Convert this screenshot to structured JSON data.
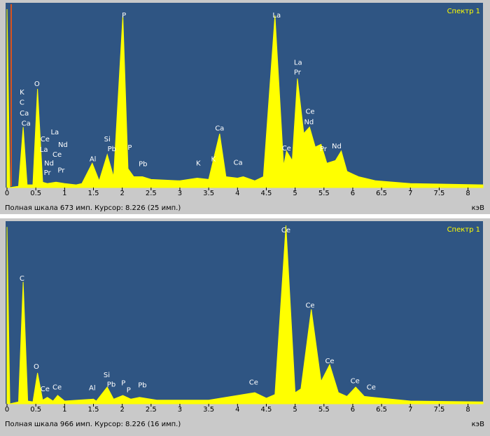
{
  "chart_data": [
    {
      "type": "area",
      "title": "Спектр 1",
      "status": "Полная шкала 673 имп. Курсор: 8.226  (25 имп.)",
      "x_label": "кэВ",
      "color": "#ffff00",
      "xlim": [
        0,
        8.26
      ],
      "ylim": [
        0,
        673
      ],
      "xticks": [
        0,
        0.5,
        1,
        1.5,
        2,
        2.5,
        3,
        3.5,
        4,
        4.5,
        5,
        5.5,
        6,
        6.5,
        7,
        7.5,
        8
      ],
      "x": [
        0,
        0.05,
        0.2,
        0.28,
        0.35,
        0.45,
        0.53,
        0.62,
        0.7,
        0.85,
        1.0,
        1.2,
        1.3,
        1.48,
        1.6,
        1.74,
        1.85,
        2.01,
        2.1,
        2.2,
        2.35,
        2.5,
        3.0,
        3.3,
        3.5,
        3.69,
        3.8,
        4.0,
        4.1,
        4.3,
        4.45,
        4.65,
        4.8,
        4.85,
        4.95,
        5.04,
        5.15,
        5.25,
        5.35,
        5.45,
        5.55,
        5.7,
        5.8,
        5.9,
        6.0,
        6.1,
        6.4,
        7.0,
        8.26
      ],
      "values": [
        660,
        0,
        5,
        224,
        10,
        10,
        365,
        20,
        15,
        20,
        15,
        10,
        15,
        90,
        25,
        122,
        40,
        637,
        70,
        40,
        40,
        30,
        25,
        35,
        30,
        199,
        40,
        35,
        40,
        25,
        40,
        637,
        80,
        135,
        100,
        403,
        200,
        224,
        150,
        160,
        90,
        100,
        135,
        60,
        50,
        40,
        25,
        15,
        10
      ],
      "peak_labels": [
        {
          "label": "K",
          "x": 0.26,
          "y": 352
        },
        {
          "label": "C",
          "x": 0.26,
          "y": 314
        },
        {
          "label": "Ca",
          "x": 0.3,
          "y": 275
        },
        {
          "label": "Ca",
          "x": 0.33,
          "y": 237
        },
        {
          "label": "O",
          "x": 0.52,
          "y": 383
        },
        {
          "label": "Ce",
          "x": 0.66,
          "y": 179
        },
        {
          "label": "La",
          "x": 0.83,
          "y": 204
        },
        {
          "label": "La",
          "x": 0.64,
          "y": 140
        },
        {
          "label": "Nd",
          "x": 0.97,
          "y": 158
        },
        {
          "label": "Ce",
          "x": 0.87,
          "y": 122
        },
        {
          "label": "Nd",
          "x": 0.73,
          "y": 89
        },
        {
          "label": "Pr",
          "x": 0.7,
          "y": 54
        },
        {
          "label": "Pr",
          "x": 0.94,
          "y": 64
        },
        {
          "label": "Al",
          "x": 1.49,
          "y": 105
        },
        {
          "label": "Si",
          "x": 1.74,
          "y": 179
        },
        {
          "label": "Pb",
          "x": 1.82,
          "y": 143
        },
        {
          "label": "P",
          "x": 2.03,
          "y": 637
        },
        {
          "label": "P",
          "x": 2.13,
          "y": 148
        },
        {
          "label": "Pb",
          "x": 2.36,
          "y": 87
        },
        {
          "label": "K",
          "x": 3.32,
          "y": 89
        },
        {
          "label": "K",
          "x": 3.58,
          "y": 105
        },
        {
          "label": "Ca",
          "x": 3.69,
          "y": 219
        },
        {
          "label": "Ca",
          "x": 4.01,
          "y": 92
        },
        {
          "label": "La",
          "x": 4.68,
          "y": 637
        },
        {
          "label": "Ce",
          "x": 4.85,
          "y": 145
        },
        {
          "label": "La",
          "x": 5.05,
          "y": 462
        },
        {
          "label": "Pr",
          "x": 5.04,
          "y": 426
        },
        {
          "label": "Ce",
          "x": 5.26,
          "y": 281
        },
        {
          "label": "Nd",
          "x": 5.24,
          "y": 242
        },
        {
          "label": "Pr",
          "x": 5.49,
          "y": 143
        },
        {
          "label": "Nd",
          "x": 5.72,
          "y": 153
        }
      ]
    },
    {
      "type": "area",
      "title": "Спектр 1",
      "status": "Полная шкала 966 имп. Курсор: 8.226  (16 имп.)",
      "x_label": "кэВ",
      "color": "#ffff00",
      "xlim": [
        0,
        8.26
      ],
      "ylim": [
        0,
        966
      ],
      "xticks": [
        0,
        0.5,
        1,
        1.5,
        2,
        2.5,
        3,
        3.5,
        4,
        4.5,
        5,
        5.5,
        6,
        6.5,
        7,
        7.5,
        8
      ],
      "x": [
        0,
        0.05,
        0.2,
        0.28,
        0.36,
        0.45,
        0.53,
        0.62,
        0.7,
        0.8,
        0.88,
        1.0,
        1.5,
        1.55,
        1.74,
        1.85,
        2.01,
        2.15,
        2.3,
        2.6,
        3.5,
        4.3,
        4.5,
        4.65,
        4.84,
        5.0,
        5.1,
        5.28,
        5.45,
        5.6,
        5.75,
        5.9,
        6.05,
        6.2,
        6.35,
        7.0,
        8.26
      ],
      "values": [
        950,
        0,
        10,
        655,
        15,
        10,
        166,
        20,
        35,
        15,
        45,
        15,
        25,
        15,
        90,
        25,
        45,
        25,
        35,
        20,
        20,
        60,
        30,
        50,
        958,
        60,
        80,
        507,
        120,
        211,
        60,
        40,
        90,
        40,
        35,
        15,
        10
      ],
      "peak_labels": [
        {
          "label": "C",
          "x": 0.26,
          "y": 673
        },
        {
          "label": "O",
          "x": 0.51,
          "y": 200
        },
        {
          "label": "Ce",
          "x": 0.66,
          "y": 78
        },
        {
          "label": "Ce",
          "x": 0.87,
          "y": 89
        },
        {
          "label": "Al",
          "x": 1.48,
          "y": 85
        },
        {
          "label": "Si",
          "x": 1.73,
          "y": 155
        },
        {
          "label": "Pb",
          "x": 1.81,
          "y": 104
        },
        {
          "label": "P",
          "x": 2.02,
          "y": 111
        },
        {
          "label": "P",
          "x": 2.11,
          "y": 74
        },
        {
          "label": "Pb",
          "x": 2.35,
          "y": 100
        },
        {
          "label": "Ce",
          "x": 4.28,
          "y": 115
        },
        {
          "label": "Ce",
          "x": 4.84,
          "y": 932
        },
        {
          "label": "Ce",
          "x": 5.26,
          "y": 529
        },
        {
          "label": "Ce",
          "x": 5.6,
          "y": 229
        },
        {
          "label": "Ce",
          "x": 6.04,
          "y": 122
        },
        {
          "label": "Ce",
          "x": 6.32,
          "y": 89
        }
      ]
    }
  ]
}
